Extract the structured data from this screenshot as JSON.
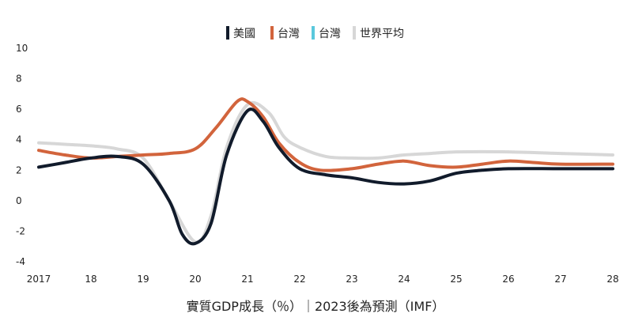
{
  "chart_data": {
    "type": "line",
    "title": "",
    "xlabel": "實質GDP成長（％）｜2023後為預測（IMF）",
    "ylabel": "",
    "x_tick_labels": [
      "2017",
      "18",
      "19",
      "20",
      "21",
      "22",
      "23",
      "24",
      "25",
      "26",
      "27",
      "28"
    ],
    "y_tick_labels": [
      "10",
      "8",
      "6",
      "4",
      "2",
      "0",
      "-2",
      "-4"
    ],
    "ylim": [
      -4,
      10
    ],
    "grid": false,
    "legend_position": "top-center",
    "series": [
      {
        "name": "美國",
        "color": "#111b2b",
        "points": [
          [
            2017,
            2.2
          ],
          [
            2017.5,
            2.5
          ],
          [
            2018,
            2.8
          ],
          [
            2018.5,
            2.9
          ],
          [
            2019,
            2.4
          ],
          [
            2019.5,
            0.0
          ],
          [
            2019.75,
            -2.2
          ],
          [
            2020,
            -2.8
          ],
          [
            2020.3,
            -1.5
          ],
          [
            2020.6,
            3.0
          ],
          [
            2021,
            5.9
          ],
          [
            2021.3,
            5.2
          ],
          [
            2021.6,
            3.5
          ],
          [
            2022,
            2.1
          ],
          [
            2022.5,
            1.7
          ],
          [
            2023,
            1.5
          ],
          [
            2023.5,
            1.2
          ],
          [
            2024,
            1.1
          ],
          [
            2024.5,
            1.3
          ],
          [
            2025,
            1.8
          ],
          [
            2025.5,
            2.0
          ],
          [
            2026,
            2.1
          ],
          [
            2027,
            2.1
          ],
          [
            2028,
            2.1
          ]
        ]
      },
      {
        "name": "台灣",
        "color": "#d2643c",
        "points": [
          [
            2017,
            3.3
          ],
          [
            2017.5,
            3.0
          ],
          [
            2018,
            2.8
          ],
          [
            2018.5,
            2.9
          ],
          [
            2019,
            3.0
          ],
          [
            2019.5,
            3.1
          ],
          [
            2020,
            3.4
          ],
          [
            2020.4,
            4.8
          ],
          [
            2020.8,
            6.5
          ],
          [
            2021,
            6.5
          ],
          [
            2021.3,
            5.5
          ],
          [
            2021.6,
            3.8
          ],
          [
            2022,
            2.5
          ],
          [
            2022.4,
            2.0
          ],
          [
            2023,
            2.1
          ],
          [
            2023.5,
            2.4
          ],
          [
            2024,
            2.6
          ],
          [
            2024.5,
            2.3
          ],
          [
            2025,
            2.2
          ],
          [
            2025.5,
            2.4
          ],
          [
            2026,
            2.6
          ],
          [
            2026.5,
            2.5
          ],
          [
            2027,
            2.4
          ],
          [
            2028,
            2.4
          ]
        ]
      },
      {
        "name": "台灣",
        "color": "#5ac8dc",
        "points": []
      },
      {
        "name": "世界平均",
        "color": "#d7d7d7",
        "points": [
          [
            2017,
            3.8
          ],
          [
            2017.5,
            3.7
          ],
          [
            2018,
            3.6
          ],
          [
            2018.5,
            3.4
          ],
          [
            2019,
            2.8
          ],
          [
            2019.5,
            0.0
          ],
          [
            2020,
            -2.7
          ],
          [
            2020.3,
            -1.0
          ],
          [
            2020.6,
            3.5
          ],
          [
            2021,
            6.3
          ],
          [
            2021.4,
            5.8
          ],
          [
            2021.7,
            4.2
          ],
          [
            2022,
            3.5
          ],
          [
            2022.5,
            2.9
          ],
          [
            2023,
            2.8
          ],
          [
            2023.5,
            2.8
          ],
          [
            2024,
            3.0
          ],
          [
            2024.5,
            3.1
          ],
          [
            2025,
            3.2
          ],
          [
            2026,
            3.2
          ],
          [
            2027,
            3.1
          ],
          [
            2028,
            3.0
          ]
        ]
      }
    ]
  }
}
